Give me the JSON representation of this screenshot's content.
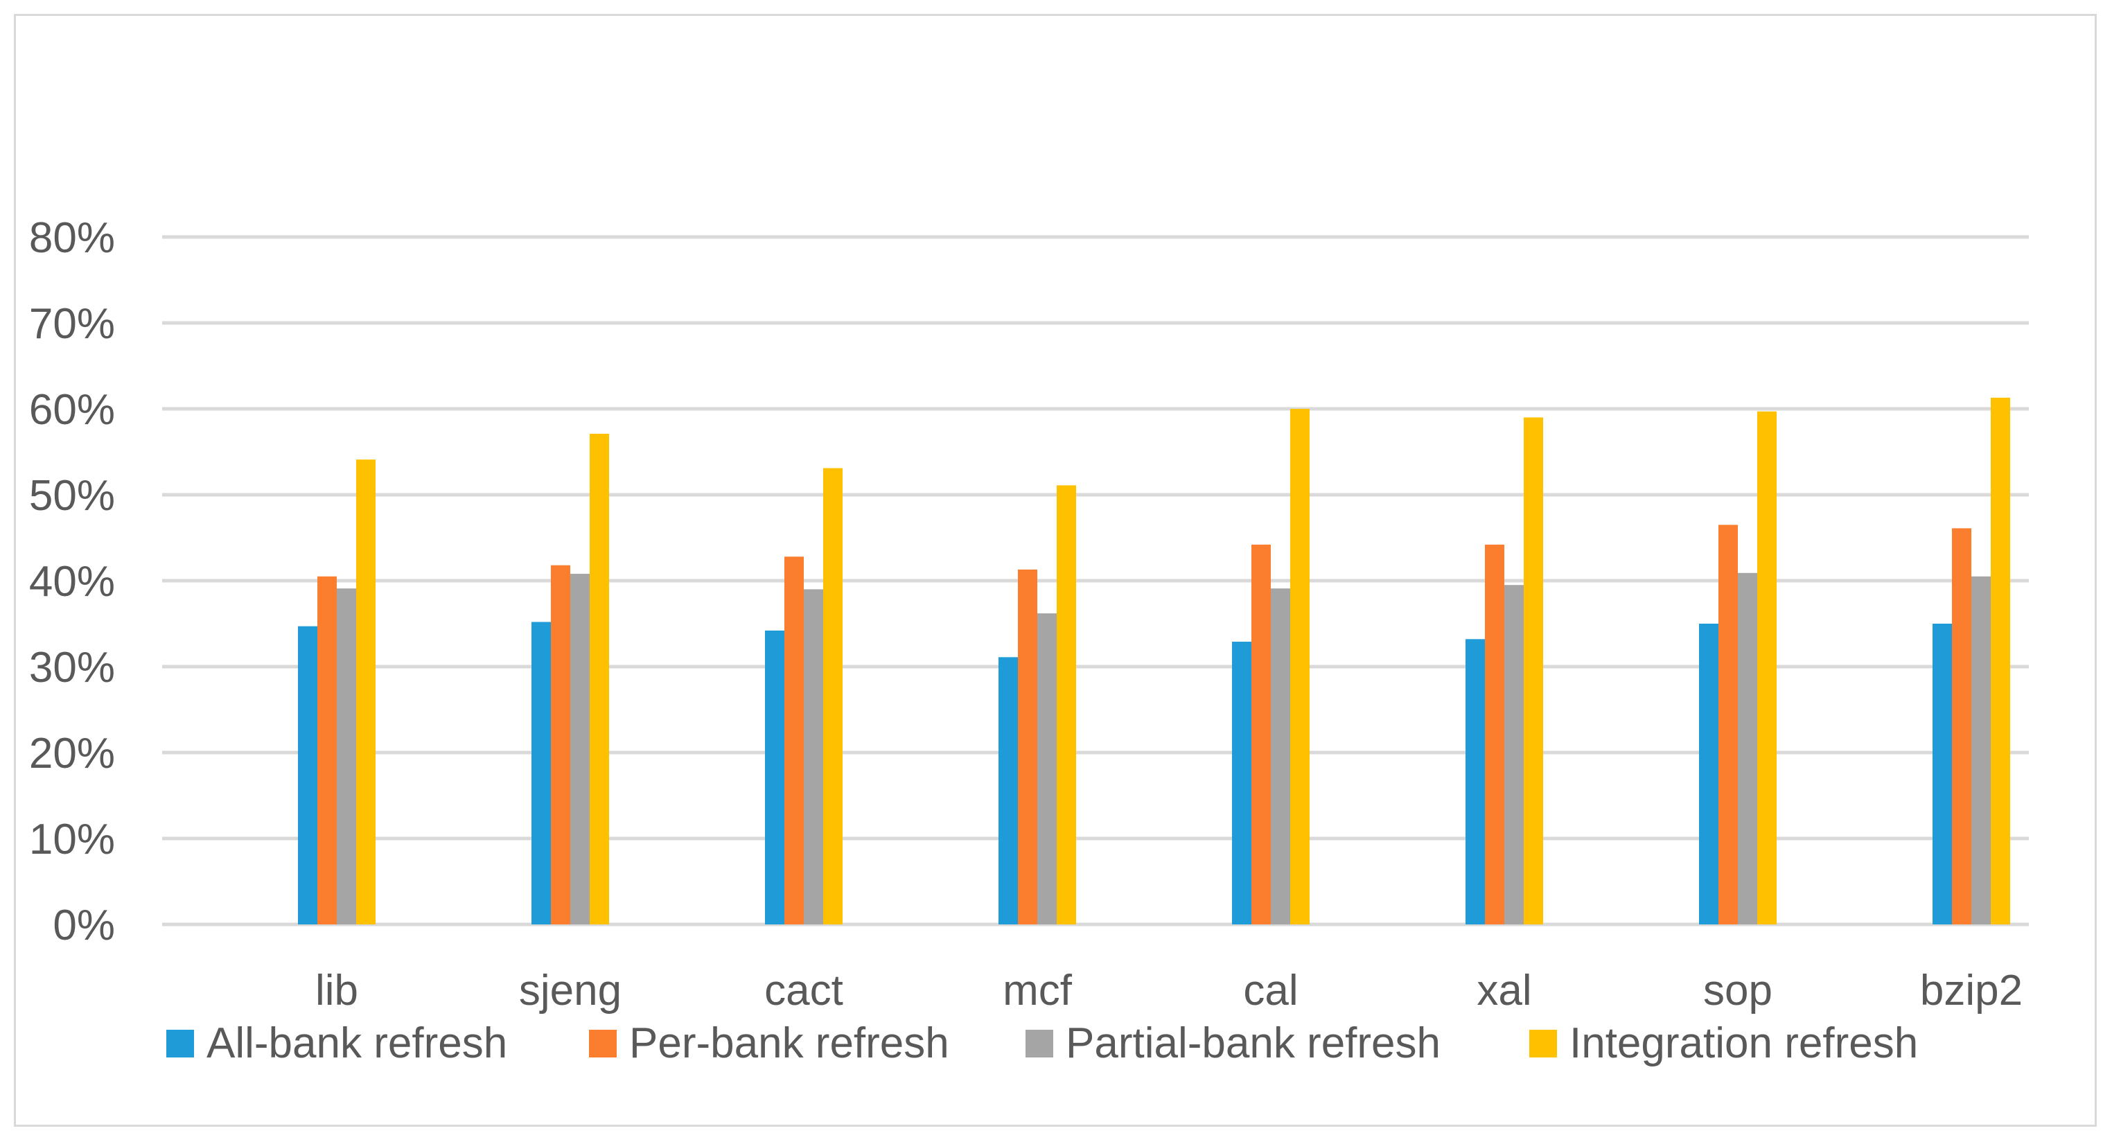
{
  "chart_data": {
    "type": "bar",
    "title": "",
    "xlabel": "",
    "ylabel": "",
    "ylim": [
      0,
      0.8
    ],
    "yticks": [
      0,
      0.1,
      0.2,
      0.3,
      0.4,
      0.5,
      0.6,
      0.7,
      0.8
    ],
    "ytick_labels": [
      "0%",
      "10%",
      "20%",
      "30%",
      "40%",
      "50%",
      "60%",
      "70%",
      "80%"
    ],
    "grid": true,
    "legend_position": "bottom",
    "categories": [
      "lib",
      "sjeng",
      "cact",
      "mcf",
      "cal",
      "xal",
      "sop",
      "bzip2"
    ],
    "series": [
      {
        "name": "All-bank refresh",
        "color": "#1f9bd7",
        "values": [
          0.347,
          0.352,
          0.342,
          0.311,
          0.329,
          0.332,
          0.35,
          0.35
        ]
      },
      {
        "name": "Per-bank refresh",
        "color": "#fb7e2f",
        "values": [
          0.405,
          0.418,
          0.428,
          0.413,
          0.442,
          0.442,
          0.465,
          0.461
        ]
      },
      {
        "name": "Partial-bank refresh",
        "color": "#a5a5a5",
        "values": [
          0.391,
          0.408,
          0.39,
          0.362,
          0.391,
          0.395,
          0.409,
          0.405
        ]
      },
      {
        "name": "Integration refresh",
        "color": "#ffc000",
        "values": [
          0.541,
          0.571,
          0.531,
          0.511,
          0.6,
          0.59,
          0.597,
          0.613
        ]
      }
    ]
  }
}
